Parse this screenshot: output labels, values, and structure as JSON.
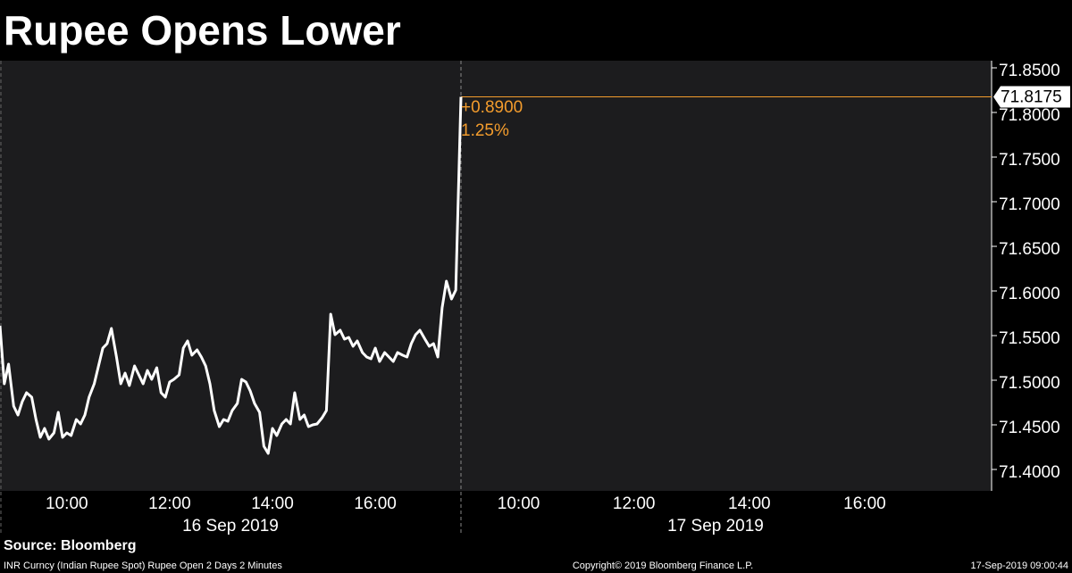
{
  "chart_data": {
    "type": "line",
    "title": "Rupee Opens Lower",
    "source": "Source: Bloomberg",
    "footer_left": "INR Curncy (Indian Rupee Spot) Rupee Open 2 Days 2 Minutes",
    "footer_center": "Copyright© 2019 Bloomberg Finance L.P.",
    "footer_right": "17-Sep-2019 09:00:44",
    "grid": false,
    "panels": [
      {
        "date": "16 Sep 2019",
        "xlim": [
          "08:42",
          "17:40"
        ],
        "xticks": [
          "10:00",
          "12:00",
          "14:00",
          "16:00"
        ]
      },
      {
        "date": "17 Sep 2019",
        "xlim": [
          "09:00",
          "18:12"
        ],
        "xticks": [
          "10:00",
          "12:00",
          "14:00",
          "16:00"
        ]
      }
    ],
    "ylim": [
      71.376,
      71.858
    ],
    "yticks": [
      {
        "value": 71.4,
        "label": "71.4000"
      },
      {
        "value": 71.45,
        "label": "71.4500"
      },
      {
        "value": 71.5,
        "label": "71.5000"
      },
      {
        "value": 71.55,
        "label": "71.5500"
      },
      {
        "value": 71.6,
        "label": "71.6000"
      },
      {
        "value": 71.65,
        "label": "71.6500"
      },
      {
        "value": 71.7,
        "label": "71.7000"
      },
      {
        "value": 71.75,
        "label": "71.7500"
      },
      {
        "value": 71.8,
        "label": "71.8000"
      },
      {
        "value": 71.85,
        "label": "71.8500"
      }
    ],
    "last_value": 71.8175,
    "last_color": "#f39c2d",
    "change": {
      "value": 0.89,
      "label": "+0.8900"
    },
    "change_pct": {
      "value": 1.25,
      "label": "1.25%"
    },
    "series": [
      {
        "color": "#ffffff",
        "x": [
          "16 Sep 2019 08:42",
          "16 Sep 2019 08:47",
          "16 Sep 2019 08:52",
          "16 Sep 2019 08:58",
          "16 Sep 2019 09:03",
          "16 Sep 2019 09:08",
          "16 Sep 2019 09:13",
          "16 Sep 2019 09:19",
          "16 Sep 2019 09:24",
          "16 Sep 2019 09:29",
          "16 Sep 2019 09:34",
          "16 Sep 2019 09:39",
          "16 Sep 2019 09:45",
          "16 Sep 2019 09:50",
          "16 Sep 2019 09:55",
          "16 Sep 2019 10:00",
          "16 Sep 2019 10:05",
          "16 Sep 2019 10:11",
          "16 Sep 2019 10:16",
          "16 Sep 2019 10:21",
          "16 Sep 2019 10:26",
          "16 Sep 2019 10:32",
          "16 Sep 2019 10:37",
          "16 Sep 2019 10:42",
          "16 Sep 2019 10:47",
          "16 Sep 2019 10:52",
          "16 Sep 2019 10:58",
          "16 Sep 2019 11:03",
          "16 Sep 2019 11:08",
          "16 Sep 2019 11:13",
          "16 Sep 2019 11:19",
          "16 Sep 2019 11:24",
          "16 Sep 2019 11:29",
          "16 Sep 2019 11:34",
          "16 Sep 2019 11:39",
          "16 Sep 2019 11:45",
          "16 Sep 2019 11:50",
          "16 Sep 2019 11:55",
          "16 Sep 2019 12:00",
          "16 Sep 2019 12:05",
          "16 Sep 2019 12:11",
          "16 Sep 2019 12:16",
          "16 Sep 2019 12:21",
          "16 Sep 2019 12:26",
          "16 Sep 2019 12:32",
          "16 Sep 2019 12:37",
          "16 Sep 2019 12:42",
          "16 Sep 2019 12:47",
          "16 Sep 2019 12:52",
          "16 Sep 2019 12:58",
          "16 Sep 2019 13:03",
          "16 Sep 2019 13:08",
          "16 Sep 2019 13:13",
          "16 Sep 2019 13:19",
          "16 Sep 2019 13:24",
          "16 Sep 2019 13:29",
          "16 Sep 2019 13:34",
          "16 Sep 2019 13:39",
          "16 Sep 2019 13:45",
          "16 Sep 2019 13:50",
          "16 Sep 2019 13:55",
          "16 Sep 2019 14:00",
          "16 Sep 2019 14:05",
          "16 Sep 2019 14:11",
          "16 Sep 2019 14:16",
          "16 Sep 2019 14:21",
          "16 Sep 2019 14:26",
          "16 Sep 2019 14:32",
          "16 Sep 2019 14:37",
          "16 Sep 2019 14:42",
          "16 Sep 2019 14:47",
          "16 Sep 2019 14:52",
          "16 Sep 2019 14:58",
          "16 Sep 2019 15:03",
          "16 Sep 2019 15:08",
          "16 Sep 2019 15:13",
          "16 Sep 2019 15:19",
          "16 Sep 2019 15:24",
          "16 Sep 2019 15:29",
          "16 Sep 2019 15:34",
          "16 Sep 2019 15:39",
          "16 Sep 2019 15:45",
          "16 Sep 2019 15:50",
          "16 Sep 2019 15:55",
          "16 Sep 2019 16:00",
          "16 Sep 2019 16:05",
          "16 Sep 2019 16:11",
          "16 Sep 2019 16:16",
          "16 Sep 2019 16:21",
          "16 Sep 2019 16:26",
          "16 Sep 2019 16:32",
          "16 Sep 2019 16:37",
          "16 Sep 2019 16:42",
          "16 Sep 2019 16:47",
          "16 Sep 2019 16:52",
          "16 Sep 2019 16:58",
          "16 Sep 2019 17:03",
          "16 Sep 2019 17:08",
          "16 Sep 2019 17:13",
          "16 Sep 2019 17:18",
          "16 Sep 2019 17:23",
          "16 Sep 2019 17:29",
          "16 Sep 2019 17:34",
          "17 Sep 2019 09:00"
        ],
        "values": [
          71.561,
          71.496,
          71.518,
          71.471,
          71.461,
          71.476,
          71.486,
          71.481,
          71.456,
          71.436,
          71.446,
          71.434,
          71.441,
          71.464,
          71.436,
          71.441,
          71.438,
          71.456,
          71.451,
          71.461,
          71.481,
          71.496,
          71.516,
          71.536,
          71.541,
          71.558,
          71.526,
          71.496,
          71.508,
          71.494,
          71.516,
          71.506,
          71.496,
          71.511,
          71.501,
          71.514,
          71.486,
          71.481,
          71.498,
          71.501,
          71.506,
          71.536,
          71.544,
          71.528,
          71.534,
          71.526,
          71.516,
          71.496,
          71.466,
          71.448,
          71.456,
          71.454,
          71.466,
          71.474,
          71.501,
          71.498,
          71.488,
          71.474,
          71.464,
          71.426,
          71.418,
          71.446,
          71.438,
          71.451,
          71.456,
          71.451,
          71.486,
          71.456,
          71.461,
          71.448,
          71.45,
          71.451,
          71.458,
          71.466,
          71.574,
          71.551,
          71.556,
          71.546,
          71.548,
          71.538,
          71.544,
          71.531,
          71.526,
          71.524,
          71.536,
          71.521,
          71.531,
          71.526,
          71.521,
          71.531,
          71.528,
          71.526,
          71.541,
          71.551,
          71.556,
          71.546,
          71.538,
          71.541,
          71.526,
          71.581,
          71.611,
          71.591,
          71.601,
          71.8175
        ]
      }
    ]
  }
}
